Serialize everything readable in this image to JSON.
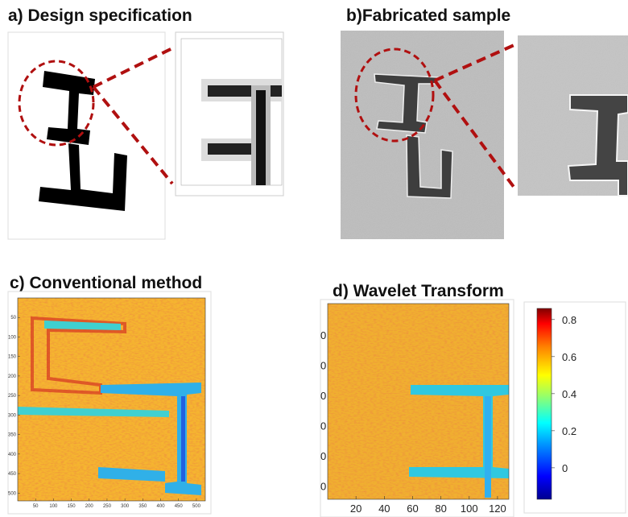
{
  "panels": {
    "a": {
      "title": "a) Design specification"
    },
    "b": {
      "title": "b)Fabricated sample"
    },
    "c": {
      "title": "c) Conventional method",
      "xlim": [
        0,
        525
      ],
      "ylim": [
        0,
        520
      ],
      "xticks": [
        50,
        100,
        150,
        200,
        250,
        300,
        350,
        400,
        450,
        500
      ],
      "yticks": [
        50,
        100,
        150,
        200,
        250,
        300,
        350,
        400,
        450,
        500
      ]
    },
    "d": {
      "title": "d) Wavelet Transform",
      "xlim": [
        0,
        128
      ],
      "xticks": [
        20,
        40,
        60,
        80,
        100,
        120
      ],
      "ytick_labels": [
        "0",
        "0",
        "0",
        "0",
        "0",
        "0"
      ]
    },
    "colorbar": {
      "lim": [
        -0.17,
        0.86
      ],
      "ticks": [
        0.8,
        0.6,
        0.4,
        0.2,
        0
      ]
    }
  }
}
